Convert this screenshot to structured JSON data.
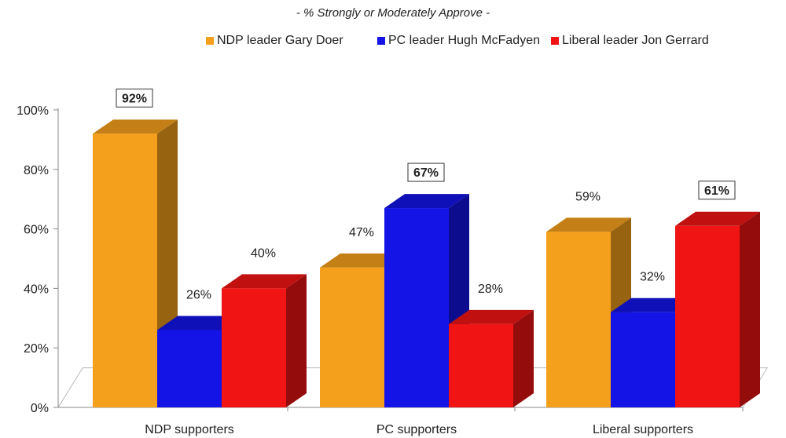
{
  "chart_data": {
    "type": "bar",
    "subtitle": "- % Strongly or Moderately Approve -",
    "categories": [
      "NDP supporters",
      "PC supporters",
      "Liberal supporters"
    ],
    "series": [
      {
        "name": "NDP leader Gary Doer",
        "color": "#f5a01c",
        "values": [
          92,
          47,
          59
        ],
        "value_labels": [
          "92%",
          "47%",
          "59%"
        ]
      },
      {
        "name": "PC leader Hugh McFadyen",
        "color": "#1414e6",
        "values": [
          26,
          67,
          32
        ],
        "value_labels": [
          "26%",
          "67%",
          "32%"
        ]
      },
      {
        "name": "Liberal leader Jon Gerrard",
        "color": "#f01414",
        "values": [
          40,
          28,
          61
        ],
        "value_labels": [
          "40%",
          "28%",
          "61%"
        ]
      }
    ],
    "highlighted": [
      [
        0,
        0
      ],
      [
        1,
        1
      ],
      [
        2,
        2
      ]
    ],
    "ylim": [
      0,
      100
    ],
    "yticks": [
      0,
      20,
      40,
      60,
      80,
      100
    ],
    "ytick_labels": [
      "0%",
      "20%",
      "40%",
      "60%",
      "80%",
      "100%"
    ],
    "grid": false,
    "legend_position": "top"
  }
}
